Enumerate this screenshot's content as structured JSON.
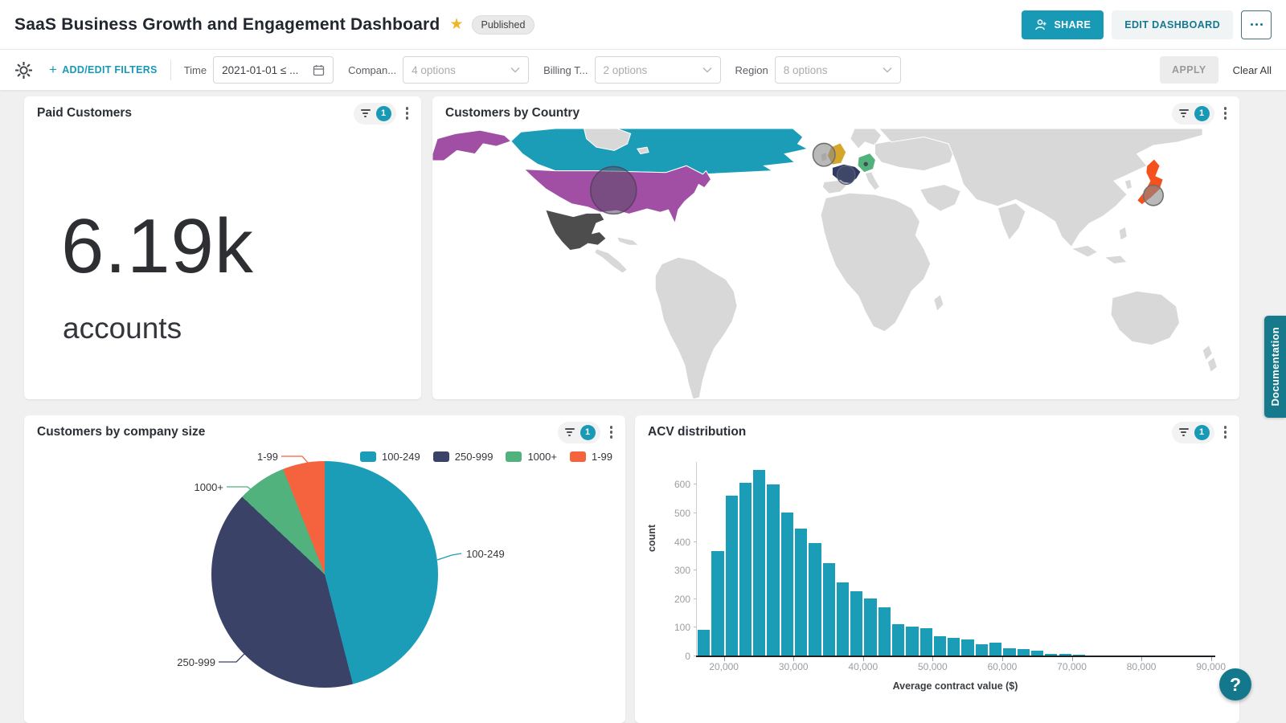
{
  "header": {
    "title": "SaaS Business Growth and Engagement Dashboard",
    "status_badge": "Published",
    "share_button": "SHARE",
    "edit_button": "EDIT DASHBOARD"
  },
  "filter_bar": {
    "add_edit_filters": "ADD/EDIT FILTERS",
    "filters": [
      {
        "label": "Time",
        "value": "2021-01-01 ≤ ...",
        "type": "date"
      },
      {
        "label": "Compan...",
        "value": "4 options",
        "type": "select"
      },
      {
        "label": "Billing T...",
        "value": "2 options",
        "type": "select"
      },
      {
        "label": "Region",
        "value": "8 options",
        "type": "select"
      }
    ],
    "apply_button": "APPLY",
    "clear_all": "Clear All"
  },
  "cards": {
    "kpi": {
      "title": "Paid Customers",
      "filter_count": "1",
      "value": "6.19k",
      "unit": "accounts"
    },
    "country": {
      "title": "Customers by Country",
      "filter_count": "1"
    },
    "size": {
      "title": "Customers by company size",
      "filter_count": "1"
    },
    "acv": {
      "title": "ACV distribution",
      "filter_count": "1"
    }
  },
  "side": {
    "documentation_tab": "Documentation",
    "help_button": "?"
  },
  "colors": {
    "accent_teal": "#1899b6",
    "badge_teal": "#1899b6",
    "doc_tab_teal": "#17798c",
    "star_gold": "#f0b429"
  },
  "chart_data": [
    {
      "type": "pie",
      "title": "Customers by company size",
      "labels": [
        "100-249",
        "250-999",
        "1000+",
        "1-99"
      ],
      "values_pct": [
        46,
        41,
        7,
        6
      ],
      "colors": [
        "#1b9db8",
        "#3b4268",
        "#52b27e",
        "#f4623e"
      ],
      "start_angle_deg": 0,
      "legend_position": "top-right",
      "callouts": [
        "1-99",
        "1000+",
        "250-999",
        "100-249"
      ]
    },
    {
      "type": "bar",
      "subtype": "histogram",
      "title": "ACV distribution",
      "xlabel": "Average contract value ($)",
      "ylabel": "count",
      "bar_color": "#1b9db8",
      "bin_start": 16000,
      "bin_width": 2000,
      "values": [
        95,
        370,
        565,
        610,
        655,
        605,
        505,
        450,
        400,
        330,
        260,
        230,
        205,
        175,
        115,
        107,
        100,
        72,
        68,
        62,
        45,
        50,
        30,
        28,
        22,
        12,
        10,
        8,
        0,
        3
      ],
      "xlim": [
        16000,
        90500
      ],
      "ylim": [
        0,
        680
      ],
      "yticks": [
        0,
        100,
        200,
        300,
        400,
        500,
        600
      ],
      "xticks": [
        20000,
        30000,
        40000,
        50000,
        60000,
        70000,
        80000,
        90000
      ],
      "xtick_labels": [
        "20,000",
        "30,000",
        "40,000",
        "50,000",
        "60,000",
        "70,000",
        "80,000",
        "90,000"
      ],
      "grid": false,
      "legend": false
    },
    {
      "type": "heatmap",
      "subtype": "choropleth-world-map",
      "title": "Customers by Country",
      "base_land_color": "#d8d8d8",
      "highlighted_countries": [
        {
          "name": "Canada",
          "color": "#1b9db8"
        },
        {
          "name": "United States",
          "color": "#a04fa4",
          "bubble": "large"
        },
        {
          "name": "Alaska (US)",
          "color": "#a04fa4"
        },
        {
          "name": "Mexico",
          "color": "#4d4d4d"
        },
        {
          "name": "United Kingdom",
          "color": "#d4a62a",
          "bubble": "large"
        },
        {
          "name": "France",
          "color": "#2e3a64",
          "bubble": "medium"
        },
        {
          "name": "Germany",
          "color": "#52b27e",
          "bubble": "dot"
        },
        {
          "name": "Japan",
          "color": "#f4511e",
          "bubble": "small"
        }
      ]
    }
  ]
}
